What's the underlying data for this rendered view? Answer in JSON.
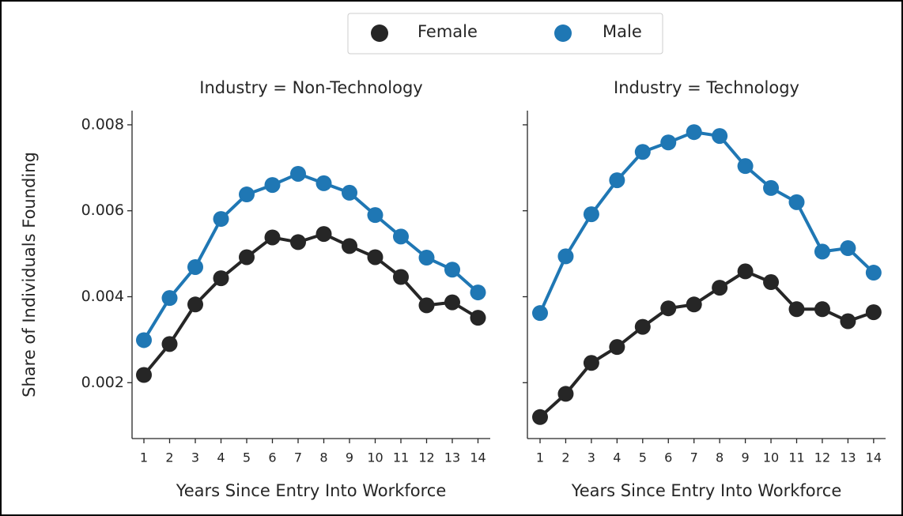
{
  "chart_data": [
    {
      "type": "line",
      "title": "Industry = Non-Technology",
      "x_label": "Years Since Entry Into Workforce",
      "y_label": "Share of Individuals Founding",
      "categories": [
        "1",
        "2",
        "3",
        "4",
        "5",
        "6",
        "7",
        "8",
        "9",
        "10",
        "11",
        "12",
        "13",
        "14"
      ],
      "series": [
        {
          "name": "Female",
          "color": "#262626",
          "values": [
            0.00218,
            0.0029,
            0.00382,
            0.00443,
            0.00492,
            0.00538,
            0.00527,
            0.00546,
            0.00518,
            0.00492,
            0.00446,
            0.0038,
            0.00387,
            0.00351
          ]
        },
        {
          "name": "Male",
          "color": "#1f77b4",
          "values": [
            0.00299,
            0.00397,
            0.00469,
            0.00581,
            0.00638,
            0.0066,
            0.00686,
            0.00664,
            0.00642,
            0.0059,
            0.0054,
            0.00491,
            0.00463,
            0.0041
          ]
        }
      ],
      "ylim": [
        0.0007,
        0.00833
      ],
      "yticks": [
        0.002,
        0.004,
        0.006,
        0.008
      ]
    },
    {
      "type": "line",
      "title": "Industry = Technology",
      "x_label": "Years Since Entry Into Workforce",
      "categories": [
        "1",
        "2",
        "3",
        "4",
        "5",
        "6",
        "7",
        "8",
        "9",
        "10",
        "11",
        "12",
        "13",
        "14"
      ],
      "series": [
        {
          "name": "Female",
          "color": "#262626",
          "values": [
            0.0012,
            0.00174,
            0.00246,
            0.00283,
            0.0033,
            0.00373,
            0.00382,
            0.00421,
            0.00459,
            0.00434,
            0.00371,
            0.00371,
            0.00343,
            0.00364
          ]
        },
        {
          "name": "Male",
          "color": "#1f77b4",
          "values": [
            0.00362,
            0.00494,
            0.00592,
            0.00671,
            0.00737,
            0.00759,
            0.00783,
            0.00774,
            0.00704,
            0.00653,
            0.0062,
            0.00505,
            0.00513,
            0.00456
          ]
        }
      ],
      "ylim": [
        0.0007,
        0.00833
      ],
      "yticks": [
        0.002,
        0.004,
        0.006,
        0.008
      ]
    }
  ]
}
